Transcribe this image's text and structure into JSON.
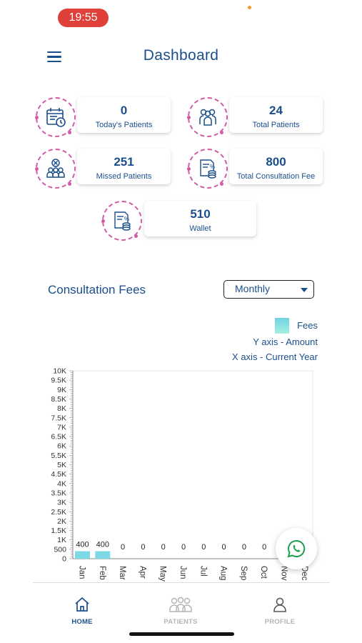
{
  "status_bar": {
    "time": "19:55"
  },
  "header": {
    "title": "Dashboard"
  },
  "stats": [
    {
      "value": "0",
      "label": "Today's Patients"
    },
    {
      "value": "24",
      "label": "Total Patients"
    },
    {
      "value": "251",
      "label": "Missed Patients"
    },
    {
      "value": "800",
      "label": "Total Consultation Fee"
    },
    {
      "value": "510",
      "label": "Wallet"
    }
  ],
  "section": {
    "title": "Consultation Fees"
  },
  "dropdown": {
    "selected": "Monthly"
  },
  "legend": {
    "series_label": "Fees",
    "y_axis_note": "Y axis - Amount",
    "x_axis_note": "X axis - Current Year",
    "series_color": "#7dd9e6"
  },
  "chart_data": {
    "type": "bar",
    "categories": [
      "Jan",
      "Feb",
      "Mar",
      "Apr",
      "May",
      "Jun",
      "Jul",
      "Aug",
      "Sep",
      "Oct",
      "Nov",
      "Dec"
    ],
    "values": [
      400,
      400,
      0,
      0,
      0,
      0,
      0,
      0,
      0,
      0,
      0,
      0
    ],
    "data_labels": [
      "400",
      "400",
      "0",
      "0",
      "0",
      "0",
      "0",
      "0",
      "0",
      "0",
      "",
      ""
    ],
    "y_ticks": [
      "0",
      "500",
      "1K",
      "1.5K",
      "2K",
      "2.5K",
      "3K",
      "3.5K",
      "4K",
      "4.5K",
      "5K",
      "5.5K",
      "6K",
      "6.5K",
      "7K",
      "7.5K",
      "8K",
      "8.5K",
      "9K",
      "9.5K",
      "10K"
    ],
    "ylim": [
      0,
      10000
    ],
    "series": [
      {
        "name": "Fees",
        "values": [
          400,
          400,
          0,
          0,
          0,
          0,
          0,
          0,
          0,
          0,
          0,
          0
        ]
      }
    ],
    "legend_position": "top-right"
  },
  "bottom_nav": [
    {
      "label": "HOME",
      "active": true
    },
    {
      "label": "PATIENTS",
      "active": false
    },
    {
      "label": "PROFILE",
      "active": false
    }
  ],
  "colors": {
    "primary": "#1b4f8c",
    "accent": "#d35ba6",
    "inactive": "#b5b5b5"
  }
}
